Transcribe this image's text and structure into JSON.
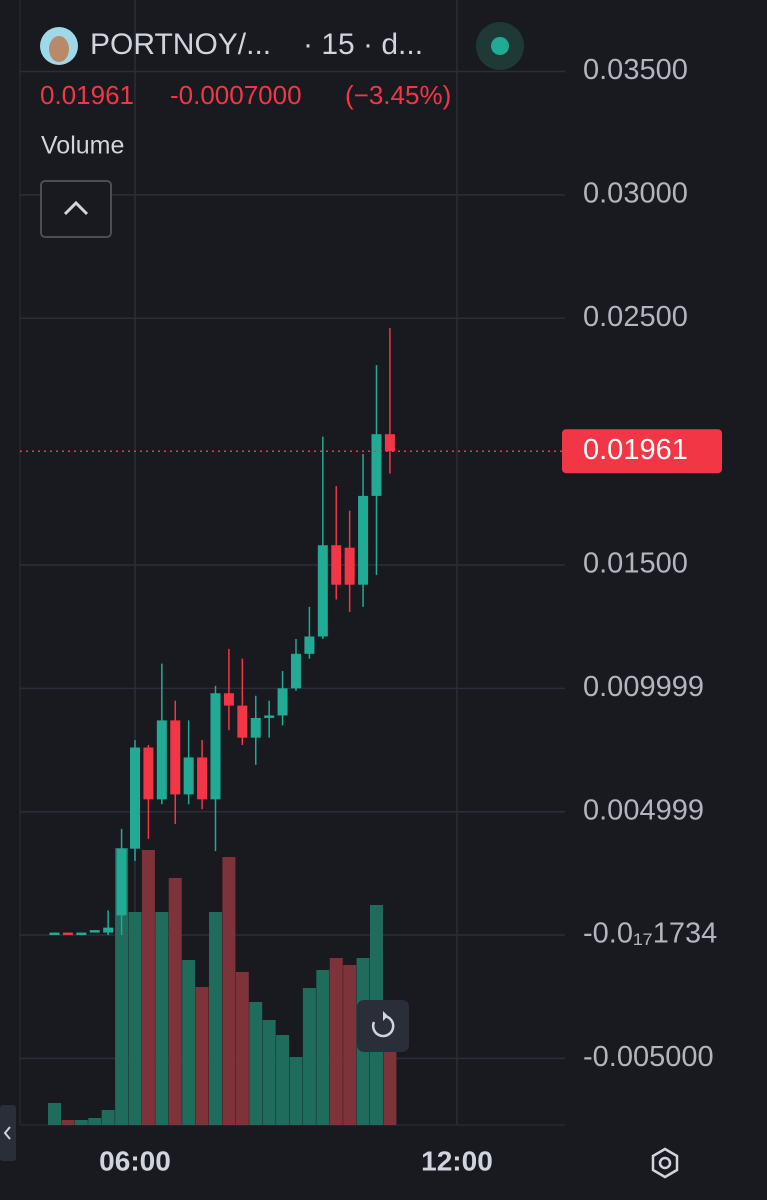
{
  "header": {
    "symbol": "PORTNOY/...",
    "interval": "· 15 · d...",
    "price": "0.01961",
    "change": "-0.0007000",
    "change_pct": "(−3.45%)",
    "indicator": "Volume"
  },
  "chart_data": {
    "type": "candlestick",
    "x": [
      4.5,
      4.75,
      5,
      5.25,
      5.5,
      5.75,
      6,
      6.25,
      6.5,
      6.75,
      7,
      7.25,
      7.5,
      7.75,
      8,
      8.25,
      8.5,
      8.75,
      9,
      9.25,
      9.5,
      9.75,
      10,
      10.25,
      10.5,
      10.75
    ],
    "open": [
      0.0,
      0.0001,
      0.0,
      0.0001,
      0.0001,
      0.0008,
      0.0035,
      0.0076,
      0.0055,
      0.0087,
      0.0057,
      0.0072,
      0.0055,
      0.0098,
      0.0093,
      0.008,
      0.0088,
      0.0089,
      0.01,
      0.0114,
      0.0121,
      0.0158,
      0.0157,
      0.0142,
      0.0178,
      0.0203
    ],
    "high": [
      0.0001,
      0.0001,
      0.0001,
      0.0002,
      0.001,
      0.0043,
      0.0079,
      0.0077,
      0.011,
      0.0095,
      0.0087,
      0.0079,
      0.0101,
      0.0116,
      0.0112,
      0.0097,
      0.0095,
      0.0107,
      0.012,
      0.0133,
      0.0202,
      0.0182,
      0.0172,
      0.0195,
      0.0231,
      0.0246
    ],
    "low": [
      0.0,
      0.0,
      0.0,
      0.0001,
      0.0,
      0.0,
      0.003,
      0.0039,
      0.0053,
      0.0045,
      0.0053,
      0.0051,
      0.0034,
      0.0083,
      0.0077,
      0.0069,
      0.008,
      0.0085,
      0.0099,
      0.0112,
      0.012,
      0.0136,
      0.0131,
      0.0133,
      0.0146,
      0.0187
    ],
    "close": [
      0.0001,
      0.0,
      0.0001,
      0.0002,
      0.0003,
      0.0035,
      0.0076,
      0.0055,
      0.0087,
      0.0057,
      0.0072,
      0.0055,
      0.0098,
      0.0093,
      0.008,
      0.0088,
      0.0089,
      0.01,
      0.0114,
      0.0121,
      0.0158,
      0.0142,
      0.0142,
      0.0178,
      0.0203,
      0.01961
    ],
    "volume": [
      22,
      5,
      5,
      7,
      15,
      277,
      213,
      275,
      213,
      247,
      165,
      138,
      213,
      268,
      153,
      123,
      105,
      90,
      68,
      137,
      155,
      167,
      160,
      167,
      220,
      75
    ],
    "up_color": "#22ab94",
    "down_color": "#f23645",
    "volume_up_color": "#1f6b5c",
    "volume_down_color": "#7d3339",
    "xlim": [
      3.857,
      14.013
    ],
    "xticks": [
      {
        "value": 6,
        "label": "06:00"
      },
      {
        "value": 12,
        "label": "12:00"
      }
    ],
    "ylim": [
      -0.0077,
      0.0379
    ],
    "yticks": [
      {
        "value": 0.035,
        "label": "0.03500"
      },
      {
        "value": 0.03,
        "label": "0.03000"
      },
      {
        "value": 0.025,
        "label": "0.02500"
      },
      {
        "value": 0.015,
        "label": "0.01500"
      },
      0.009999,
      0.004999,
      {
        "value": -1.734e-18,
        "label": "-0.0₁₇1734"
      },
      {
        "value": -0.005,
        "label": "-0.005000"
      }
    ],
    "grid": true
  }
}
